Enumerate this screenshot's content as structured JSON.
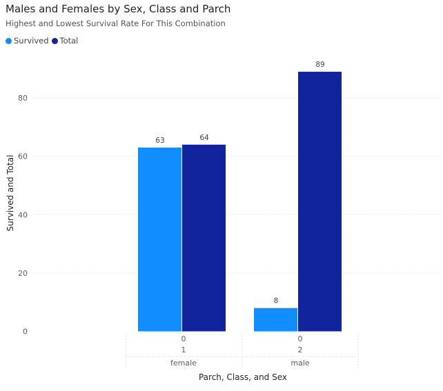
{
  "header": {
    "title": "Males and Females by Sex, Class and Parch",
    "subtitle": "Highest and Lowest Survival Rate For This Combination"
  },
  "colors": {
    "survived": "#118DFF",
    "total": "#12239E",
    "gridline": "#d9d9d9",
    "axis_text": "#605E5C"
  },
  "chart_data": {
    "type": "bar",
    "title": "Males and Females by Sex, Class and Parch",
    "subtitle": "Highest and Lowest Survival Rate For This Combination",
    "xlabel": "Parch, Class, and Sex",
    "ylabel": "Survived and Total",
    "ylim": [
      0,
      89
    ],
    "yticks": [
      0,
      20,
      40,
      60,
      80
    ],
    "grid": true,
    "legend_position": "top-left",
    "categories": [
      {
        "parch": "0",
        "class": "1",
        "sex": "female"
      },
      {
        "parch": "0",
        "class": "2",
        "sex": "male"
      }
    ],
    "series": [
      {
        "name": "Survived",
        "color": "#118DFF",
        "values": [
          63,
          8
        ]
      },
      {
        "name": "Total",
        "color": "#12239E",
        "values": [
          64,
          89
        ]
      }
    ]
  }
}
